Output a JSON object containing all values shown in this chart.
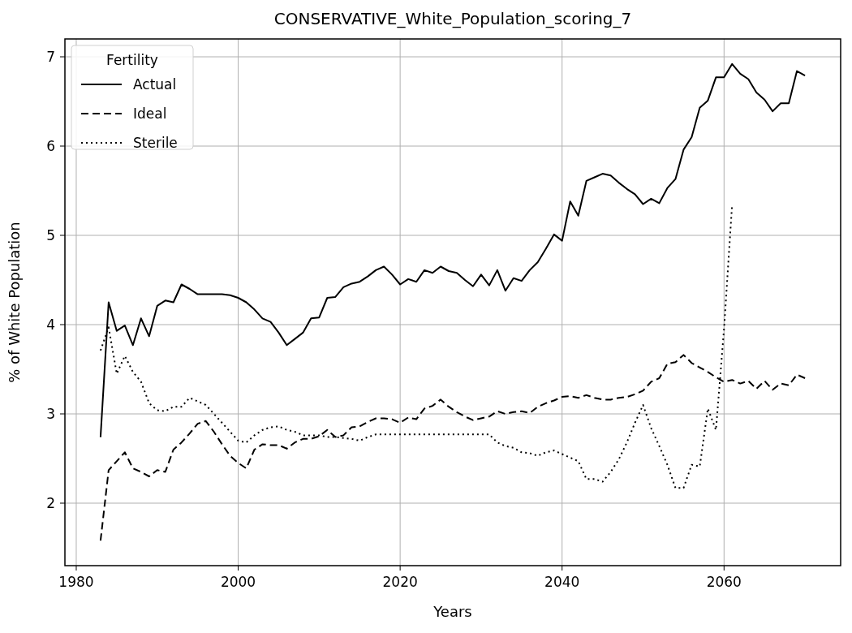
{
  "chart_data": {
    "type": "line",
    "title": "CONSERVATIVE_White_Population_scoring_7",
    "xlabel": "Years",
    "ylabel": "% of White Population",
    "legend_title": "Fertility",
    "x": [
      1983,
      1984,
      1985,
      1986,
      1987,
      1988,
      1989,
      1990,
      1991,
      1992,
      1993,
      1994,
      1995,
      1996,
      1997,
      1998,
      1999,
      2000,
      2001,
      2002,
      2003,
      2004,
      2005,
      2006,
      2007,
      2008,
      2009,
      2010,
      2011,
      2012,
      2013,
      2014,
      2015,
      2016,
      2017,
      2018,
      2019,
      2020,
      2021,
      2022,
      2023,
      2024,
      2025,
      2026,
      2027,
      2028,
      2029,
      2030,
      2031,
      2032,
      2033,
      2034,
      2035,
      2036,
      2037,
      2038,
      2039,
      2040,
      2041,
      2042,
      2043,
      2044,
      2045,
      2046,
      2047,
      2048,
      2049,
      2050,
      2051,
      2052,
      2053,
      2054,
      2055,
      2056,
      2057,
      2058,
      2059,
      2060,
      2061,
      2062,
      2063,
      2064,
      2065,
      2066,
      2067,
      2068,
      2069,
      2070
    ],
    "series": [
      {
        "name": "Actual",
        "color": "#000000",
        "line_style": "solid",
        "values": [
          2.74,
          4.25,
          3.93,
          3.99,
          3.77,
          4.07,
          3.87,
          4.21,
          4.27,
          4.25,
          4.45,
          4.4,
          4.34,
          4.34,
          4.34,
          4.34,
          4.33,
          4.3,
          4.25,
          4.17,
          4.07,
          4.03,
          3.91,
          3.77,
          3.84,
          3.91,
          4.07,
          4.08,
          4.3,
          4.31,
          4.42,
          4.46,
          4.48,
          4.54,
          4.61,
          4.65,
          4.56,
          4.45,
          4.51,
          4.48,
          4.61,
          4.58,
          4.65,
          4.6,
          4.58,
          4.5,
          4.43,
          4.56,
          4.44,
          4.61,
          4.38,
          4.52,
          4.49,
          4.61,
          4.7,
          4.85,
          5.01,
          4.94,
          5.38,
          5.22,
          5.61,
          5.65,
          5.69,
          5.67,
          5.59,
          5.52,
          5.46,
          5.35,
          5.41,
          5.36,
          5.53,
          5.63,
          5.96,
          6.1,
          6.43,
          6.51,
          6.77,
          6.77,
          6.92,
          6.81,
          6.75,
          6.6,
          6.52,
          6.39,
          6.48,
          6.48,
          6.84,
          6.79
        ]
      },
      {
        "name": "Ideal",
        "color": "#000000",
        "line_style": "dashed",
        "values": [
          1.58,
          2.37,
          2.47,
          2.57,
          2.39,
          2.35,
          2.3,
          2.37,
          2.35,
          2.6,
          2.68,
          2.78,
          2.89,
          2.92,
          2.8,
          2.66,
          2.53,
          2.45,
          2.39,
          2.6,
          2.66,
          2.65,
          2.65,
          2.61,
          2.68,
          2.72,
          2.72,
          2.75,
          2.82,
          2.74,
          2.76,
          2.85,
          2.86,
          2.91,
          2.95,
          2.95,
          2.94,
          2.9,
          2.96,
          2.94,
          3.06,
          3.09,
          3.16,
          3.08,
          3.02,
          2.97,
          2.93,
          2.95,
          2.97,
          3.03,
          3.0,
          3.02,
          3.03,
          3.01,
          3.08,
          3.12,
          3.15,
          3.19,
          3.2,
          3.18,
          3.21,
          3.18,
          3.16,
          3.16,
          3.18,
          3.19,
          3.22,
          3.26,
          3.36,
          3.4,
          3.56,
          3.58,
          3.66,
          3.57,
          3.52,
          3.47,
          3.41,
          3.36,
          3.38,
          3.34,
          3.37,
          3.28,
          3.37,
          3.27,
          3.34,
          3.32,
          3.44,
          3.4
        ]
      },
      {
        "name": "Sterile",
        "color": "#000000",
        "line_style": "dotted",
        "values": [
          3.71,
          3.97,
          3.45,
          3.65,
          3.47,
          3.36,
          3.12,
          3.04,
          3.03,
          3.08,
          3.08,
          3.18,
          3.14,
          3.1,
          3.0,
          2.9,
          2.8,
          2.7,
          2.68,
          2.76,
          2.82,
          2.85,
          2.86,
          2.82,
          2.8,
          2.76,
          2.76,
          2.76,
          2.74,
          2.74,
          2.73,
          2.72,
          2.7,
          2.74,
          2.77,
          2.77,
          2.77,
          2.77,
          2.77,
          2.77,
          2.77,
          2.77,
          2.77,
          2.77,
          2.77,
          2.77,
          2.77,
          2.77,
          2.77,
          2.68,
          2.64,
          2.62,
          2.57,
          2.56,
          2.53,
          2.57,
          2.59,
          2.55,
          2.51,
          2.47,
          2.27,
          2.27,
          2.24,
          2.35,
          2.49,
          2.68,
          2.9,
          3.1,
          2.84,
          2.64,
          2.43,
          2.17,
          2.17,
          2.43,
          2.41,
          3.06,
          2.82,
          3.95,
          5.35,
          null,
          null,
          null,
          null,
          null,
          null,
          null,
          null,
          null
        ]
      }
    ],
    "xlim": [
      1978.6,
      2074.4
    ],
    "xticks": [
      1980,
      2000,
      2020,
      2040,
      2060
    ],
    "ylim": [
      1.3,
      7.2
    ],
    "yticks": [
      2,
      3,
      4,
      5,
      6,
      7
    ],
    "grid": true,
    "legend": "top left"
  }
}
